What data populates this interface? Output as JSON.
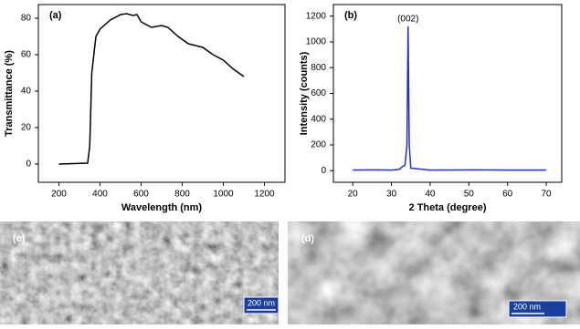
{
  "chart_data": [
    {
      "type": "line",
      "label": "(a)",
      "x_label": "Wavelength (nm)",
      "y_label": "Transmittance (%)",
      "x": [
        200,
        340,
        350,
        360,
        380,
        400,
        450,
        500,
        530,
        560,
        580,
        600,
        650,
        700,
        730,
        780,
        830,
        900,
        950,
        1000,
        1050,
        1100
      ],
      "series": [
        {
          "color": "#000000",
          "values": [
            0,
            0.5,
            10,
            50,
            70,
            74,
            79,
            82,
            82.5,
            81.5,
            82,
            78,
            75,
            76,
            75,
            70,
            66,
            64,
            60,
            57,
            52,
            48
          ]
        }
      ],
      "xlim": [
        100,
        1300
      ],
      "ylim": [
        -10,
        87.5
      ],
      "xticks": [
        200,
        400,
        600,
        800,
        1000,
        1200
      ],
      "yticks": [
        0,
        20,
        40,
        60,
        80
      ]
    },
    {
      "type": "line",
      "label": "(b)",
      "x_label": "2 Theta (degree)",
      "y_label": "Intensity (counts)",
      "annotation": "(002)",
      "x": [
        20,
        25,
        30,
        32,
        33,
        33.5,
        34,
        34.3,
        34.6,
        35,
        40,
        50,
        60,
        70
      ],
      "series": [
        {
          "color": "#1f2fd0",
          "values": [
            5,
            6,
            5,
            10,
            35,
            40,
            200,
            1120,
            200,
            20,
            5,
            6,
            5,
            5
          ]
        }
      ],
      "xlim": [
        15,
        74
      ],
      "ylim": [
        -90,
        1290
      ],
      "xticks": [
        20,
        30,
        40,
        50,
        60,
        70
      ],
      "yticks": [
        0,
        200,
        400,
        600,
        800,
        1000,
        1200
      ]
    }
  ],
  "images": [
    {
      "label": "(c)",
      "scale_bar": "200 nm"
    },
    {
      "label": "(d)",
      "scale_bar": "200 nm"
    }
  ]
}
